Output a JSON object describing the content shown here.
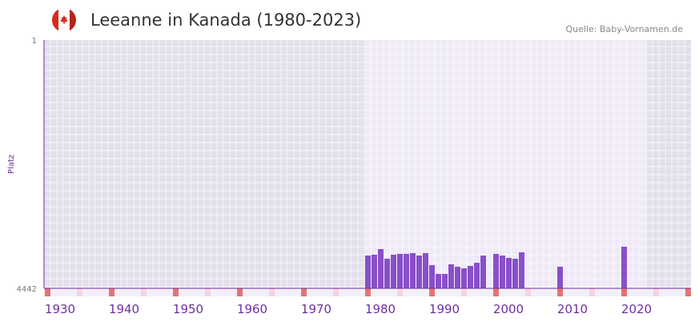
{
  "header": {
    "title": "Leeanne in Kanada (1980-2023)",
    "source": "Quelle: Baby-Vornamen.de"
  },
  "colors": {
    "bar": "#8a4fc8",
    "axis": "#7030a0",
    "bg_dark": "#e3dfeb",
    "bg_light": "#efeaf8",
    "decade": "#e57373",
    "half": "#f5d5dc"
  },
  "chart_data": {
    "type": "bar",
    "title": "Leeanne in Kanada (1980-2023)",
    "ylabel": "Platz",
    "ylim": [
      4442,
      1
    ],
    "yticks": [
      "1",
      "4442"
    ],
    "xticks": [
      "1930",
      "1940",
      "1950",
      "1960",
      "1970",
      "1980",
      "1990",
      "2000",
      "2010",
      "2020"
    ],
    "xrange": [
      1930,
      2030
    ],
    "years": [
      1980,
      1981,
      1982,
      1983,
      1984,
      1985,
      1986,
      1987,
      1988,
      1989,
      1990,
      1991,
      1992,
      1993,
      1994,
      1995,
      1996,
      1997,
      1998,
      2000,
      2001,
      2002,
      2003,
      2004,
      2010,
      2020
    ],
    "values": [
      3855,
      3840,
      3740,
      3912,
      3840,
      3826,
      3826,
      3812,
      3855,
      3812,
      4027,
      4184,
      4184,
      4012,
      4055,
      4084,
      4041,
      3984,
      3855,
      3826,
      3855,
      3898,
      3912,
      3797,
      4055,
      3697
    ]
  }
}
